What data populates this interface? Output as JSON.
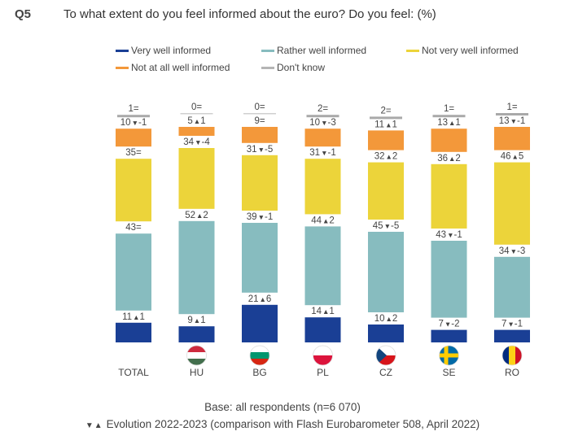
{
  "question": {
    "number": "Q5",
    "text": "To what extent do you feel informed about the euro? Do you feel: (%)"
  },
  "legend": [
    {
      "label": "Very well informed",
      "color": "#1a3f95"
    },
    {
      "label": "Rather well informed",
      "color": "#87bcbf"
    },
    {
      "label": "Not very well informed",
      "color": "#ecd43a"
    },
    {
      "label": "Not at all well informed",
      "color": "#f3983a"
    },
    {
      "label": "Don't know",
      "color": "#b5b5b5"
    }
  ],
  "chart_data": {
    "type": "bar",
    "stacked": true,
    "categories": [
      "TOTAL",
      "HU",
      "BG",
      "PL",
      "CZ",
      "SE",
      "RO"
    ],
    "flags": [
      "",
      "flag-hungary-icon",
      "flag-bulgaria-icon",
      "flag-poland-icon",
      "flag-czechia-icon",
      "flag-sweden-icon",
      "flag-romania-icon"
    ],
    "series": [
      {
        "name": "Very well informed",
        "color": "#1a3f95",
        "values": [
          11,
          9,
          21,
          14,
          10,
          7,
          7
        ],
        "labels": [
          "11▲1",
          "9▲1",
          "21▲6",
          "14▲1",
          "10▲2",
          "7▼-2",
          "7▼-1"
        ]
      },
      {
        "name": "Rather well informed",
        "color": "#87bcbf",
        "values": [
          43,
          52,
          39,
          44,
          45,
          43,
          34
        ],
        "labels": [
          "43=",
          "52▲2",
          "39▼-1",
          "44▲2",
          "45▼-5",
          "43▼-1",
          "34▼-3"
        ]
      },
      {
        "name": "Not very well informed",
        "color": "#ecd43a",
        "values": [
          35,
          34,
          31,
          31,
          32,
          36,
          46
        ],
        "labels": [
          "35=",
          "34▼-4",
          "31▼-5",
          "31▼-1",
          "32▲2",
          "36▲2",
          "46▲5"
        ]
      },
      {
        "name": "Not at all well informed",
        "color": "#f3983a",
        "values": [
          10,
          5,
          9,
          10,
          11,
          13,
          13
        ],
        "labels": [
          "10▼-1",
          "5▲1",
          "9=",
          "10▼-3",
          "11▲1",
          "13▲1",
          "13▼-1"
        ]
      },
      {
        "name": "Don't know",
        "color": "#b5b5b5",
        "values": [
          1,
          0,
          0,
          2,
          2,
          1,
          1
        ],
        "labels": [
          "1=",
          "0=",
          "0=",
          "2=",
          "2=",
          "1=",
          "1="
        ]
      }
    ]
  },
  "notes": {
    "base": "Base: all respondents (n=6 070)",
    "evolution_arrows": "▼▲",
    "evolution": "Evolution 2022-2023 (comparison with Flash Eurobarometer 508, April 2022)"
  }
}
